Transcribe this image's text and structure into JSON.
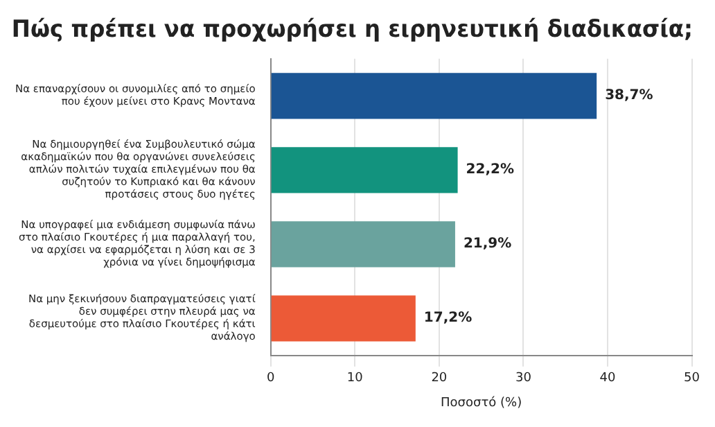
{
  "chart_data": {
    "type": "bar",
    "orientation": "horizontal",
    "title": "Πώς πρέπει να προχωρήσει η ειρηνευτική διαδικασία;",
    "xlabel": "Ποσοστό (%)",
    "categories": [
      "Να επαναρχίσουν οι συνομιλίες από το σημείο που έχουν μείνει στο Κρανς Μοντανα",
      "Να δημιουργηθεί ένα Συμβουλευτικό σώμα ακαδημαϊκών που θα οργανώνει συνελεύσεις απλών πολιτών τυχαία επιλεγμένων που θα συζητούν το Κυπριακό και θα κάνουν προτάσεις στους δυο ηγέτες",
      "Να υπογραφεί μια ενδιάμεση συμφωνία πάνω στο πλαίσιο Γκουτέρες ή μια παραλλαγή του, να αρχίσει να εφαρμόζεται η λύση και σε 3 χρόνια να γίνει δημοψήφισμα",
      "Να μην ξεκινήσουν διαπραγματεύσεις γιατί δεν συμφέρει στην πλευρά μας να δεσμευτούμε στο πλαίσιο Γκουτέρες ή κάτι ανάλογο"
    ],
    "values": [
      38.7,
      22.2,
      21.9,
      17.2
    ],
    "colors": [
      "#1b5594",
      "#12937e",
      "#6aa39e",
      "#ec5a37"
    ],
    "value_labels": [
      "38,7%",
      "22,2%",
      "21,9%",
      "17,2%"
    ],
    "xlim": [
      0,
      50
    ],
    "xticks": [
      0,
      10,
      20,
      30,
      40,
      50
    ],
    "grid": "x",
    "legend": false
  }
}
